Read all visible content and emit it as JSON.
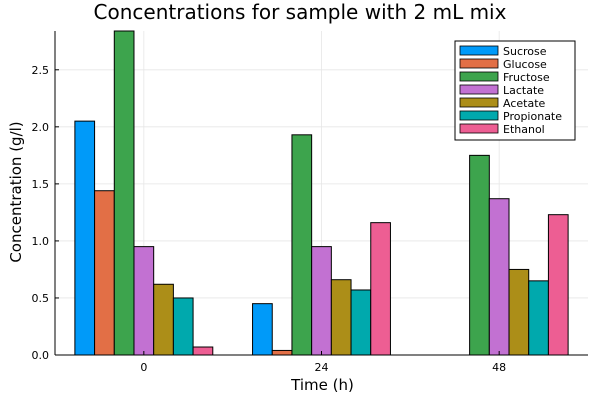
{
  "chart_data": {
    "type": "bar",
    "title": "Concentrations for sample with 2 mL mix",
    "xlabel": "Time (h)",
    "ylabel": "Concentration (g/l)",
    "categories": [
      "0",
      "24",
      "48"
    ],
    "ylim": [
      0,
      2.84
    ],
    "yticks": [
      "0.0",
      "0.5",
      "1.0",
      "1.5",
      "2.0",
      "2.5"
    ],
    "ytick_values": [
      0,
      0.5,
      1.0,
      1.5,
      2.0,
      2.5
    ],
    "grid": true,
    "legend_position": "top-right",
    "series": [
      {
        "name": "Sucrose",
        "color": "#009af9",
        "values": [
          2.05,
          0.45,
          0.0
        ]
      },
      {
        "name": "Glucose",
        "color": "#e26f46",
        "values": [
          1.44,
          0.04,
          0.0
        ]
      },
      {
        "name": "Fructose",
        "color": "#3da44d",
        "values": [
          2.84,
          1.93,
          1.75
        ]
      },
      {
        "name": "Lactate",
        "color": "#c271d2",
        "values": [
          0.95,
          0.95,
          1.37
        ]
      },
      {
        "name": "Acetate",
        "color": "#ac8e18",
        "values": [
          0.62,
          0.66,
          0.75
        ]
      },
      {
        "name": "Propionate",
        "color": "#00a9ad",
        "values": [
          0.5,
          0.57,
          0.65
        ]
      },
      {
        "name": "Ethanol",
        "color": "#ed5e93",
        "values": [
          0.07,
          1.16,
          1.23
        ]
      }
    ]
  }
}
